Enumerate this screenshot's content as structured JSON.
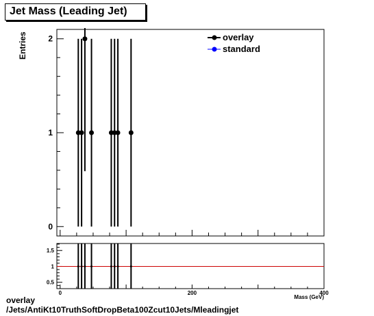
{
  "chart_data": [
    {
      "type": "scatter",
      "title": "Jet Mass (Leading Jet)",
      "xlabel": "Mass (GeV)",
      "ylabel": "Entries",
      "xlim": [
        -5,
        400
      ],
      "ylim": [
        -0.1,
        2.1
      ],
      "yticks": [
        0,
        1,
        2
      ],
      "legend_position": "top-right",
      "series": [
        {
          "name": "overlay",
          "color": "#000000",
          "marker": "circle",
          "points": [
            {
              "x": 27.5,
              "y": 1,
              "err": 1
            },
            {
              "x": 32.5,
              "y": 1,
              "err": 1
            },
            {
              "x": 37.5,
              "y": 2,
              "err": 1.41
            },
            {
              "x": 47.5,
              "y": 1,
              "err": 1
            },
            {
              "x": 77.5,
              "y": 1,
              "err": 1
            },
            {
              "x": 82.5,
              "y": 1,
              "err": 1
            },
            {
              "x": 87.5,
              "y": 1,
              "err": 1
            },
            {
              "x": 107.5,
              "y": 1,
              "err": 1
            }
          ]
        },
        {
          "name": "standard",
          "color": "#0000ff",
          "marker": "circle",
          "points": []
        }
      ]
    },
    {
      "type": "scatter",
      "xlabel": "Mass (GeV)",
      "xlim": [
        -5,
        400
      ],
      "xticks": [
        0,
        200,
        400
      ],
      "ylim": [
        0.3,
        1.72
      ],
      "yticks": [
        0.5,
        1,
        1.5
      ],
      "reference_line": {
        "y": 1,
        "color": "#cc0000"
      },
      "points": [
        {
          "x": 27.5,
          "y": 1,
          "err": 1
        },
        {
          "x": 32.5,
          "y": 1,
          "err": 1
        },
        {
          "x": 37.5,
          "y": 1,
          "err": 1
        },
        {
          "x": 47.5,
          "y": 1,
          "err": 1
        },
        {
          "x": 77.5,
          "y": 1,
          "err": 1
        },
        {
          "x": 82.5,
          "y": 1,
          "err": 1
        },
        {
          "x": 87.5,
          "y": 1,
          "err": 1
        },
        {
          "x": 107.5,
          "y": 1,
          "err": 1
        }
      ]
    }
  ],
  "footer": {
    "line1": "overlay",
    "line2": "/Jets/AntiKt10TruthSoftDropBeta100Zcut10Jets/Mleadingjet"
  }
}
